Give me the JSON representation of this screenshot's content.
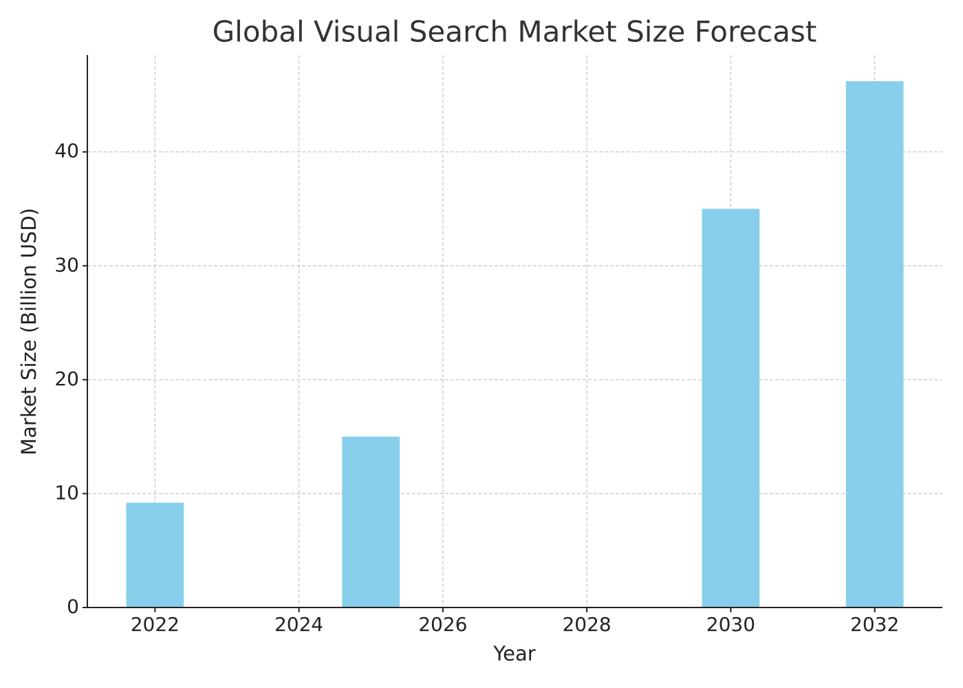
{
  "chart_data": {
    "type": "bar",
    "title": "Global Visual Search Market Size Forecast",
    "x_label": "Year",
    "y_label": "Market Size (Billion USD)",
    "x": [
      2022,
      2025,
      2030,
      2032
    ],
    "values": [
      9.2,
      15,
      35,
      46.2
    ],
    "color": "#87ceeb",
    "xlim": [
      2021.06,
      2032.94
    ],
    "xticks": [
      2022,
      2024,
      2026,
      2028,
      2030,
      2032
    ],
    "ylim": [
      0,
      48.5
    ],
    "yticks": [
      0,
      10,
      20,
      30,
      40
    ],
    "grid": true
  }
}
